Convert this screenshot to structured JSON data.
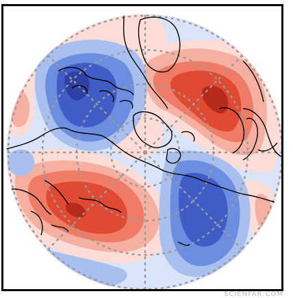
{
  "map": {
    "projection": "north-polar-stereographic",
    "colors": {
      "strong_neg": "#2e3fa6",
      "neg_3": "#3f5cc7",
      "neg_2": "#6b8ee0",
      "neg_1": "#a9c0ee",
      "neg_0": "#d9e4f8",
      "pos_0": "#fbdcd6",
      "pos_1": "#f6b0a2",
      "pos_2": "#ef7c66",
      "pos_3": "#e04a33",
      "strong_pos": "#b52a1a",
      "coastline": "#000000",
      "graticule": "#9a9a9a"
    }
  },
  "watermark": {
    "text": "SCIENFAR.COM"
  }
}
